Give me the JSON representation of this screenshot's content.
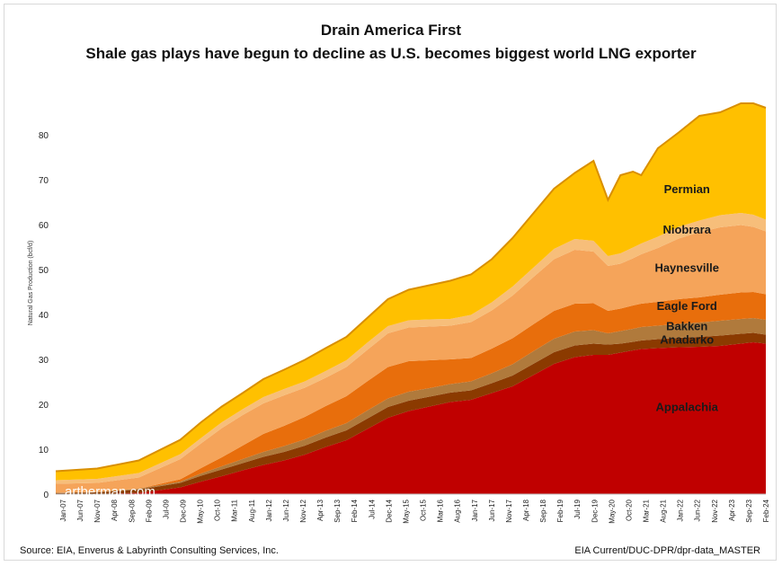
{
  "title": "Drain America First",
  "subtitle": "Shale gas plays have begun to decline as U.S. becomes biggest world LNG exporter",
  "source": "Source: EIA, Enverus & Labyrinth Consulting Services, Inc.",
  "file_ref": "EIA Current/DUC-DPR/dpr-data_MASTER",
  "watermark": "artberman.com",
  "chart_data": {
    "type": "area",
    "stacked": true,
    "ylabel": "Natural Gas Production (bcf/d)",
    "ylim": [
      0,
      90
    ],
    "yticks": [
      0,
      10,
      20,
      30,
      40,
      50,
      60,
      70,
      80
    ],
    "xlim": [
      2007.0,
      2024.1
    ],
    "xticks": [
      "Jan-07",
      "Jun-07",
      "Nov-07",
      "Apr-08",
      "Sep-08",
      "Feb-09",
      "Jul-09",
      "Dec-09",
      "May-10",
      "Oct-10",
      "Mar-11",
      "Aug-11",
      "Jan-12",
      "Jun-12",
      "Nov-12",
      "Apr-13",
      "Sep-13",
      "Feb-14",
      "Jul-14",
      "Dec-14",
      "May-15",
      "Oct-15",
      "Mar-16",
      "Aug-16",
      "Jan-17",
      "Jun-17",
      "Nov-17",
      "Apr-18",
      "Sep-18",
      "Feb-19",
      "Jul-19",
      "Dec-19",
      "May-20",
      "Oct-20",
      "Mar-21",
      "Aug-21",
      "Jan-22",
      "Jun-22",
      "Nov-22",
      "Apr-23",
      "Sep-23",
      "Feb-24"
    ],
    "x": [
      2007.0,
      2008.0,
      2009.0,
      2010.0,
      2010.5,
      2011.0,
      2011.5,
      2012.0,
      2012.5,
      2013.0,
      2013.5,
      2014.0,
      2014.5,
      2015.0,
      2015.5,
      2016.0,
      2016.5,
      2017.0,
      2017.5,
      2018.0,
      2018.5,
      2019.0,
      2019.5,
      2019.95,
      2020.3,
      2020.6,
      2020.9,
      2021.1,
      2021.5,
      2022.0,
      2022.5,
      2023.0,
      2023.5,
      2023.8,
      2024.1
    ],
    "series": [
      {
        "name": "Appalachia",
        "color": "#c00000",
        "values": [
          0.0,
          0.0,
          0.3,
          1.5,
          2.8,
          4.0,
          5.3,
          6.5,
          7.5,
          8.8,
          10.5,
          12.0,
          14.5,
          17.0,
          18.5,
          19.5,
          20.5,
          21.0,
          22.5,
          24.0,
          26.5,
          29.0,
          30.5,
          31.0,
          31.0,
          31.5,
          32.0,
          32.3,
          32.5,
          32.7,
          32.8,
          33.0,
          33.5,
          33.8,
          33.5
        ]
      },
      {
        "name": "Anadarko",
        "color": "#8b3a00",
        "values": [
          0.2,
          0.4,
          0.7,
          1.0,
          1.3,
          1.5,
          1.6,
          1.8,
          1.9,
          2.0,
          2.1,
          2.2,
          2.3,
          2.4,
          2.3,
          2.2,
          2.1,
          2.1,
          2.2,
          2.4,
          2.5,
          2.6,
          2.6,
          2.5,
          2.3,
          2.0,
          1.9,
          1.9,
          2.0,
          2.1,
          2.2,
          2.3,
          2.2,
          2.1,
          2.0
        ]
      },
      {
        "name": "Bakken",
        "color": "#b07a3c",
        "values": [
          0.1,
          0.1,
          0.2,
          0.3,
          0.5,
          0.7,
          0.9,
          1.1,
          1.3,
          1.4,
          1.5,
          1.6,
          1.8,
          1.9,
          2.0,
          1.9,
          1.9,
          2.0,
          2.2,
          2.5,
          2.8,
          3.0,
          3.1,
          3.0,
          2.5,
          2.8,
          2.9,
          3.0,
          3.0,
          3.1,
          3.2,
          3.3,
          3.3,
          3.3,
          3.3
        ]
      },
      {
        "name": "Eagle Ford",
        "color": "#e86e0c",
        "values": [
          0.0,
          0.0,
          0.0,
          0.5,
          1.2,
          2.0,
          3.0,
          4.0,
          4.5,
          5.0,
          5.5,
          6.0,
          6.5,
          7.0,
          6.8,
          6.2,
          5.5,
          5.2,
          5.5,
          5.8,
          6.0,
          6.2,
          6.2,
          6.0,
          5.0,
          5.0,
          5.2,
          5.2,
          5.3,
          5.5,
          5.6,
          5.8,
          5.9,
          5.8,
          5.7
        ]
      },
      {
        "name": "Haynesville",
        "color": "#f5a45a",
        "values": [
          2.0,
          2.0,
          2.5,
          4.5,
          5.5,
          6.5,
          6.8,
          6.8,
          6.8,
          6.5,
          6.3,
          6.5,
          7.0,
          7.5,
          7.5,
          7.5,
          7.5,
          8.0,
          8.5,
          9.5,
          10.5,
          11.5,
          12.0,
          11.5,
          10.0,
          10.0,
          10.5,
          11.0,
          12.0,
          13.5,
          14.5,
          15.0,
          15.0,
          14.5,
          14.0
        ]
      },
      {
        "name": "Niobrara",
        "color": "#f7be7a",
        "values": [
          0.8,
          0.9,
          1.0,
          1.1,
          1.2,
          1.3,
          1.3,
          1.4,
          1.4,
          1.4,
          1.5,
          1.5,
          1.6,
          1.6,
          1.6,
          1.6,
          1.5,
          1.6,
          1.8,
          2.0,
          2.1,
          2.3,
          2.4,
          2.4,
          2.2,
          2.3,
          2.4,
          2.4,
          2.5,
          2.6,
          2.6,
          2.7,
          2.7,
          2.7,
          2.6
        ]
      },
      {
        "name": "Permian",
        "color": "#ffc000",
        "values": [
          2.0,
          2.3,
          2.8,
          3.2,
          3.5,
          3.5,
          3.6,
          4.0,
          4.3,
          4.8,
          5.1,
          5.2,
          5.5,
          6.0,
          6.8,
          7.6,
          8.5,
          9.0,
          9.6,
          10.8,
          12.1,
          13.4,
          14.7,
          17.8,
          12.5,
          17.4,
          16.9,
          15.2,
          19.7,
          21.0,
          23.3,
          22.9,
          24.4,
          24.8,
          24.9
        ]
      }
    ]
  }
}
